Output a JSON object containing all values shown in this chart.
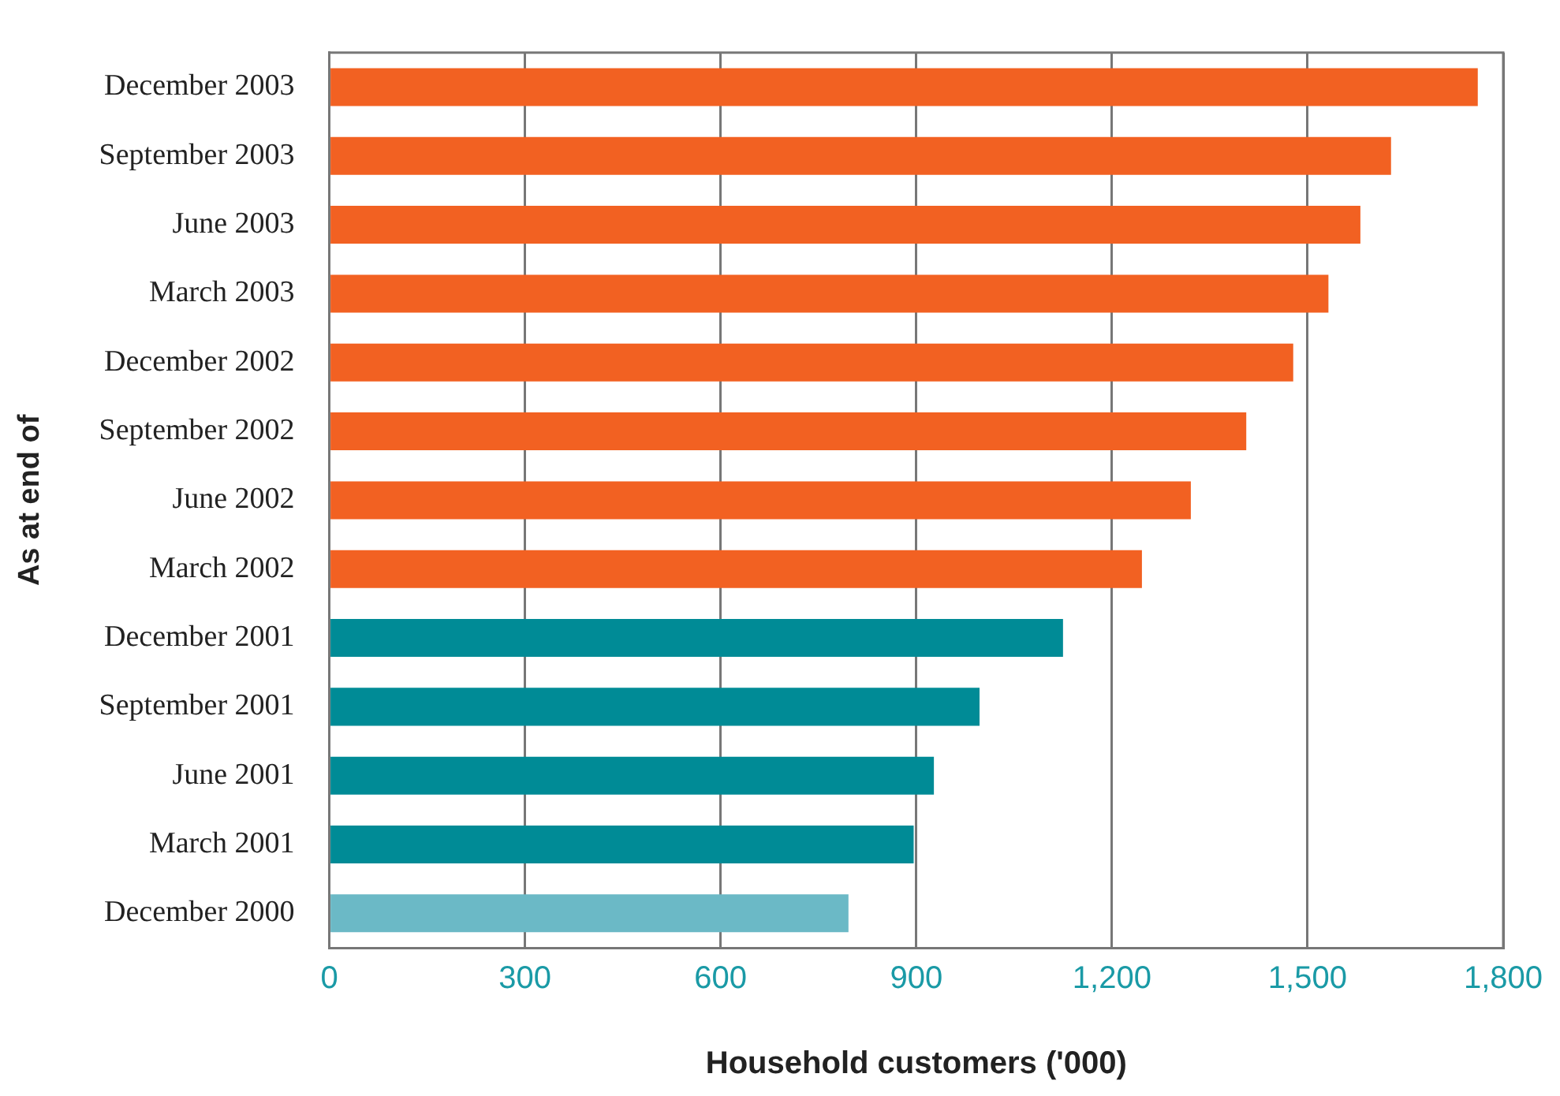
{
  "chart_data": {
    "type": "bar",
    "orientation": "horizontal",
    "xlabel": "Household customers ('000)",
    "ylabel": "As at end of",
    "categories": [
      "December 2003",
      "September 2003",
      "June 2003",
      "March 2003",
      "December 2002",
      "September 2002",
      "June 2002",
      "March 2002",
      "December 2001",
      "September 2001",
      "June 2001",
      "March 2001",
      "December 2000"
    ],
    "values": [
      1761,
      1628,
      1581,
      1532,
      1478,
      1406,
      1321,
      1246,
      1125,
      997,
      927,
      896,
      796
    ],
    "colors": [
      "#f26122",
      "#f26122",
      "#f26122",
      "#f26122",
      "#f26122",
      "#f26122",
      "#f26122",
      "#f26122",
      "#008b96",
      "#008b96",
      "#008b96",
      "#008b96",
      "#6bb9c6"
    ],
    "xlim": [
      0,
      1800
    ],
    "xticks": [
      0,
      {
        "value": 300,
        "label": "300"
      },
      {
        "value": 600,
        "label": "600"
      },
      {
        "value": 900,
        "label": "900"
      },
      {
        "value": 1200,
        "label": "1,200"
      },
      {
        "value": 1500,
        "label": "1,500"
      },
      {
        "value": 1800,
        "label": "1,800"
      }
    ],
    "grid": "x",
    "legend": false
  }
}
